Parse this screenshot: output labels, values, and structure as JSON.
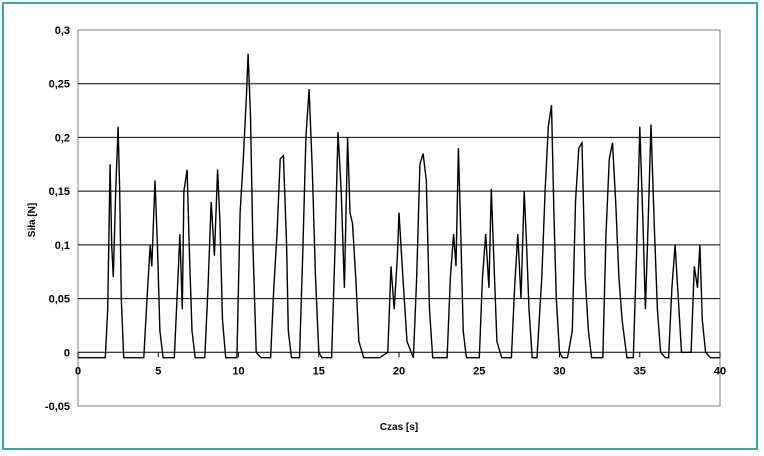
{
  "chart_data": {
    "type": "line",
    "title": "",
    "xlabel": "Czas [s]",
    "ylabel": "Siła [N]",
    "xlim": [
      0,
      40
    ],
    "ylim": [
      -0.05,
      0.3
    ],
    "x_ticks": [
      0,
      5,
      10,
      15,
      20,
      25,
      30,
      35,
      40
    ],
    "x_tick_labels": [
      "0",
      "5",
      "10",
      "15",
      "20",
      "25",
      "30",
      "35",
      "40"
    ],
    "y_ticks": [
      -0.05,
      0,
      0.05,
      0.1,
      0.15,
      0.2,
      0.25,
      0.3
    ],
    "y_tick_labels": [
      "-0,05",
      "0",
      "0,05",
      "0,1",
      "0,15",
      "0,2",
      "0,25",
      "0,3"
    ],
    "grid": "horizontal",
    "legend": "none",
    "line_color": "#000000",
    "frame_color": "#3aa898",
    "series": [
      {
        "x": [
          0,
          1.7,
          1.85,
          2.0,
          2.1,
          2.2,
          2.35,
          2.5,
          2.6,
          2.7,
          2.85,
          3.0,
          3.2,
          4.1,
          4.3,
          4.5,
          4.6,
          4.8,
          4.95,
          5.1,
          5.3,
          5.6,
          6.0,
          6.2,
          6.35,
          6.5,
          6.6,
          6.8,
          6.95,
          7.1,
          7.3,
          7.5,
          7.9,
          8.1,
          8.3,
          8.5,
          8.7,
          8.85,
          9.0,
          9.2,
          9.4,
          9.6,
          9.9,
          10.1,
          10.3,
          10.5,
          10.6,
          10.75,
          10.9,
          11.1,
          11.4,
          11.7,
          12.0,
          12.2,
          12.4,
          12.6,
          12.8,
          13.0,
          13.1,
          13.3,
          13.6,
          13.8,
          14.0,
          14.2,
          14.4,
          14.6,
          14.8,
          15.0,
          15.2,
          15.5,
          15.8,
          16.0,
          16.2,
          16.4,
          16.6,
          16.8,
          16.95,
          17.1,
          17.3,
          17.5,
          17.8,
          18.0,
          18.2,
          18.5,
          18.8,
          19.3,
          19.5,
          19.7,
          19.9,
          20.0,
          20.2,
          20.5,
          20.9,
          21.1,
          21.3,
          21.5,
          21.7,
          21.9,
          22.1,
          22.4,
          23.0,
          23.2,
          23.4,
          23.55,
          23.7,
          23.85,
          24.0,
          24.2,
          24.5,
          25.0,
          25.2,
          25.4,
          25.6,
          25.75,
          25.9,
          26.1,
          26.4,
          27.0,
          27.2,
          27.4,
          27.6,
          27.8,
          27.95,
          28.1,
          28.3,
          28.6,
          28.9,
          29.1,
          29.3,
          29.5,
          29.65,
          29.8,
          30.0,
          30.2,
          30.5,
          30.8,
          31.0,
          31.2,
          31.4,
          31.6,
          31.8,
          32.0,
          32.3,
          32.7,
          32.9,
          33.1,
          33.3,
          33.5,
          33.7,
          33.9,
          34.2,
          34.6,
          34.8,
          35.0,
          35.2,
          35.35,
          35.5,
          35.7,
          35.9,
          36.1,
          36.3,
          36.6,
          36.8,
          37.0,
          37.2,
          37.4,
          37.6,
          38.2,
          38.4,
          38.6,
          38.75,
          38.9,
          39.1,
          39.4,
          40
        ],
        "y": [
          -0.005,
          -0.005,
          0.04,
          0.175,
          0.1,
          0.07,
          0.15,
          0.21,
          0.15,
          0.05,
          -0.005,
          -0.005,
          -0.005,
          -0.005,
          0.05,
          0.1,
          0.08,
          0.16,
          0.1,
          0.02,
          -0.005,
          -0.005,
          -0.005,
          0.06,
          0.11,
          0.04,
          0.15,
          0.17,
          0.09,
          0.02,
          -0.005,
          -0.005,
          -0.005,
          0.06,
          0.14,
          0.09,
          0.17,
          0.12,
          0.03,
          -0.005,
          -0.005,
          -0.005,
          -0.005,
          0.13,
          0.18,
          0.24,
          0.278,
          0.22,
          0.1,
          0.0,
          -0.005,
          -0.005,
          -0.005,
          0.06,
          0.11,
          0.18,
          0.183,
          0.1,
          0.02,
          -0.005,
          -0.005,
          -0.005,
          0.09,
          0.2,
          0.245,
          0.17,
          0.07,
          0.0,
          -0.005,
          -0.005,
          -0.005,
          0.09,
          0.205,
          0.15,
          0.06,
          0.2,
          0.13,
          0.12,
          0.07,
          0.01,
          -0.005,
          -0.005,
          -0.005,
          -0.005,
          -0.005,
          0.0,
          0.08,
          0.04,
          0.09,
          0.13,
          0.08,
          0.01,
          -0.005,
          0.07,
          0.175,
          0.185,
          0.16,
          0.04,
          -0.005,
          -0.005,
          -0.005,
          0.07,
          0.11,
          0.08,
          0.19,
          0.11,
          0.02,
          -0.005,
          -0.005,
          -0.005,
          0.07,
          0.11,
          0.06,
          0.152,
          0.09,
          0.01,
          -0.005,
          -0.005,
          0.06,
          0.11,
          0.05,
          0.15,
          0.1,
          0.04,
          -0.005,
          -0.005,
          0.07,
          0.15,
          0.21,
          0.23,
          0.13,
          0.05,
          0.0,
          -0.005,
          -0.005,
          0.02,
          0.14,
          0.19,
          0.195,
          0.07,
          0.02,
          -0.005,
          -0.005,
          -0.005,
          0.11,
          0.18,
          0.195,
          0.14,
          0.07,
          0.03,
          -0.005,
          -0.005,
          0.09,
          0.21,
          0.12,
          0.04,
          0.11,
          0.212,
          0.12,
          0.04,
          0.0,
          -0.005,
          -0.005,
          0.06,
          0.1,
          0.05,
          0.0,
          0.0,
          0.08,
          0.06,
          0.1,
          0.03,
          0.0,
          -0.005,
          -0.005
        ]
      }
    ]
  }
}
